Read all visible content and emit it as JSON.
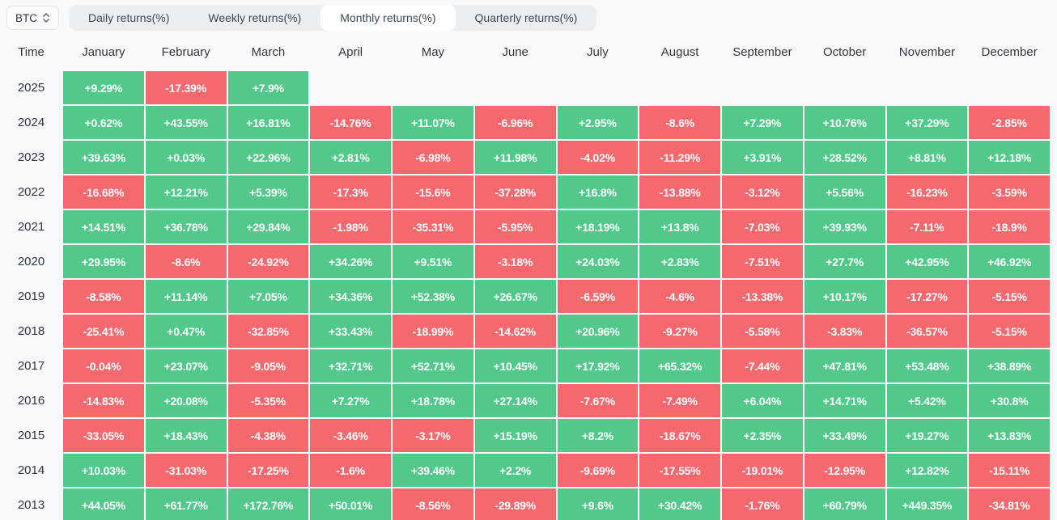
{
  "toolbar": {
    "asset_selector": {
      "value": "BTC"
    },
    "tabs": [
      {
        "label": "Daily returns(%)",
        "active": false
      },
      {
        "label": "Weekly returns(%)",
        "active": false
      },
      {
        "label": "Monthly returns(%)",
        "active": true
      },
      {
        "label": "Quarterly returns(%)",
        "active": false
      }
    ]
  },
  "colors": {
    "positive": "#52c98b",
    "negative": "#f5696e",
    "page_bg": "#f8f9fa",
    "tab_bar_bg": "#eceff2",
    "active_tab_bg": "#ffffff"
  },
  "table": {
    "time_header": "Time",
    "month_headers": [
      "January",
      "February",
      "March",
      "April",
      "May",
      "June",
      "July",
      "August",
      "September",
      "October",
      "November",
      "December"
    ],
    "rows": [
      {
        "year": "2025",
        "values": [
          "+9.29%",
          "-17.39%",
          "+7.9%",
          null,
          null,
          null,
          null,
          null,
          null,
          null,
          null,
          null
        ]
      },
      {
        "year": "2024",
        "values": [
          "+0.62%",
          "+43.55%",
          "+16.81%",
          "-14.76%",
          "+11.07%",
          "-6.96%",
          "+2.95%",
          "-8.6%",
          "+7.29%",
          "+10.76%",
          "+37.29%",
          "-2.85%"
        ]
      },
      {
        "year": "2023",
        "values": [
          "+39.63%",
          "+0.03%",
          "+22.96%",
          "+2.81%",
          "-6.98%",
          "+11.98%",
          "-4.02%",
          "-11.29%",
          "+3.91%",
          "+28.52%",
          "+8.81%",
          "+12.18%"
        ]
      },
      {
        "year": "2022",
        "values": [
          "-16.68%",
          "+12.21%",
          "+5.39%",
          "-17.3%",
          "-15.6%",
          "-37.28%",
          "+16.8%",
          "-13.88%",
          "-3.12%",
          "+5.56%",
          "-16.23%",
          "-3.59%"
        ]
      },
      {
        "year": "2021",
        "values": [
          "+14.51%",
          "+36.78%",
          "+29.84%",
          "-1.98%",
          "-35.31%",
          "-5.95%",
          "+18.19%",
          "+13.8%",
          "-7.03%",
          "+39.93%",
          "-7.11%",
          "-18.9%"
        ]
      },
      {
        "year": "2020",
        "values": [
          "+29.95%",
          "-8.6%",
          "-24.92%",
          "+34.26%",
          "+9.51%",
          "-3.18%",
          "+24.03%",
          "+2.83%",
          "-7.51%",
          "+27.7%",
          "+42.95%",
          "+46.92%"
        ]
      },
      {
        "year": "2019",
        "values": [
          "-8.58%",
          "+11.14%",
          "+7.05%",
          "+34.36%",
          "+52.38%",
          "+26.67%",
          "-6.59%",
          "-4.6%",
          "-13.38%",
          "+10.17%",
          "-17.27%",
          "-5.15%"
        ]
      },
      {
        "year": "2018",
        "values": [
          "-25.41%",
          "+0.47%",
          "-32.85%",
          "+33.43%",
          "-18.99%",
          "-14.62%",
          "+20.96%",
          "-9.27%",
          "-5.58%",
          "-3.83%",
          "-36.57%",
          "-5.15%"
        ]
      },
      {
        "year": "2017",
        "values": [
          "-0.04%",
          "+23.07%",
          "-9.05%",
          "+32.71%",
          "+52.71%",
          "+10.45%",
          "+17.92%",
          "+65.32%",
          "-7.44%",
          "+47.81%",
          "+53.48%",
          "+38.89%"
        ]
      },
      {
        "year": "2016",
        "values": [
          "-14.83%",
          "+20.08%",
          "-5.35%",
          "+7.27%",
          "+18.78%",
          "+27.14%",
          "-7.67%",
          "-7.49%",
          "+6.04%",
          "+14.71%",
          "+5.42%",
          "+30.8%"
        ]
      },
      {
        "year": "2015",
        "values": [
          "-33.05%",
          "+18.43%",
          "-4.38%",
          "-3.46%",
          "-3.17%",
          "+15.19%",
          "+8.2%",
          "-18.67%",
          "+2.35%",
          "+33.49%",
          "+19.27%",
          "+13.83%"
        ]
      },
      {
        "year": "2014",
        "values": [
          "+10.03%",
          "-31.03%",
          "-17.25%",
          "-1.6%",
          "+39.46%",
          "+2.2%",
          "-9.69%",
          "-17.55%",
          "-19.01%",
          "-12.95%",
          "+12.82%",
          "-15.11%"
        ]
      },
      {
        "year": "2013",
        "values": [
          "+44.05%",
          "+61.77%",
          "+172.76%",
          "+50.01%",
          "-8.56%",
          "-29.89%",
          "+9.6%",
          "+30.42%",
          "-1.76%",
          "+60.79%",
          "+449.35%",
          "-34.81%"
        ]
      }
    ]
  },
  "chart_data": {
    "type": "heatmap",
    "title": "BTC Monthly returns(%)",
    "x_labels": [
      "January",
      "February",
      "March",
      "April",
      "May",
      "June",
      "July",
      "August",
      "September",
      "October",
      "November",
      "December"
    ],
    "y_labels": [
      "2025",
      "2024",
      "2023",
      "2022",
      "2021",
      "2020",
      "2019",
      "2018",
      "2017",
      "2016",
      "2015",
      "2014",
      "2013"
    ],
    "values": [
      [
        9.29,
        -17.39,
        7.9,
        null,
        null,
        null,
        null,
        null,
        null,
        null,
        null,
        null
      ],
      [
        0.62,
        43.55,
        16.81,
        -14.76,
        11.07,
        -6.96,
        2.95,
        -8.6,
        7.29,
        10.76,
        37.29,
        -2.85
      ],
      [
        39.63,
        0.03,
        22.96,
        2.81,
        -6.98,
        11.98,
        -4.02,
        -11.29,
        3.91,
        28.52,
        8.81,
        12.18
      ],
      [
        -16.68,
        12.21,
        5.39,
        -17.3,
        -15.6,
        -37.28,
        16.8,
        -13.88,
        -3.12,
        5.56,
        -16.23,
        -3.59
      ],
      [
        14.51,
        36.78,
        29.84,
        -1.98,
        -35.31,
        -5.95,
        18.19,
        13.8,
        -7.03,
        39.93,
        -7.11,
        -18.9
      ],
      [
        29.95,
        -8.6,
        -24.92,
        34.26,
        9.51,
        -3.18,
        24.03,
        2.83,
        -7.51,
        27.7,
        42.95,
        46.92
      ],
      [
        -8.58,
        11.14,
        7.05,
        34.36,
        52.38,
        26.67,
        -6.59,
        -4.6,
        -13.38,
        10.17,
        -17.27,
        -5.15
      ],
      [
        -25.41,
        0.47,
        -32.85,
        33.43,
        -18.99,
        -14.62,
        20.96,
        -9.27,
        -5.58,
        -3.83,
        -36.57,
        -5.15
      ],
      [
        -0.04,
        23.07,
        -9.05,
        32.71,
        52.71,
        10.45,
        17.92,
        65.32,
        -7.44,
        47.81,
        53.48,
        38.89
      ],
      [
        -14.83,
        20.08,
        -5.35,
        7.27,
        18.78,
        27.14,
        -7.67,
        -7.49,
        6.04,
        14.71,
        5.42,
        30.8
      ],
      [
        -33.05,
        18.43,
        -4.38,
        -3.46,
        -3.17,
        15.19,
        8.2,
        -18.67,
        2.35,
        33.49,
        19.27,
        13.83
      ],
      [
        10.03,
        -31.03,
        -17.25,
        -1.6,
        39.46,
        2.2,
        -9.69,
        -17.55,
        -19.01,
        -12.95,
        12.82,
        -15.11
      ],
      [
        44.05,
        61.77,
        172.76,
        50.01,
        -8.56,
        -29.89,
        9.6,
        30.42,
        -1.76,
        60.79,
        449.35,
        -34.81
      ]
    ],
    "legend": "green = positive return, red = negative return"
  }
}
